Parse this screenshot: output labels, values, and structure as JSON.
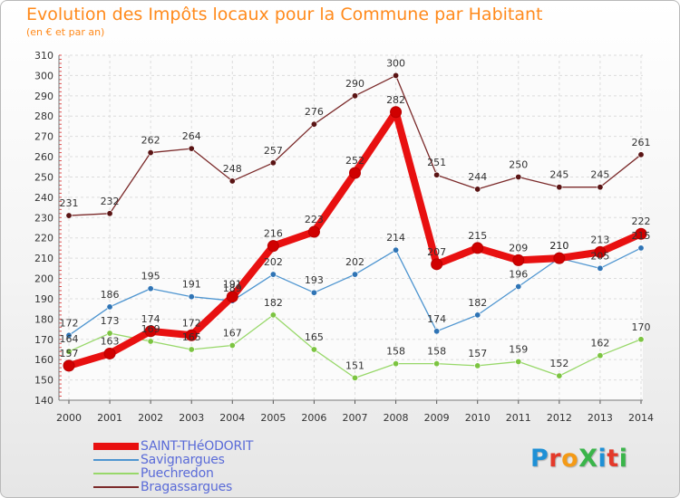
{
  "title": "Evolution des Impôts locaux pour la Commune par Habitant",
  "subtitle": "(en € et par an)",
  "logo": {
    "text": "ProXiti",
    "colors": [
      "#1e90d6",
      "#e4392a",
      "#f49a16",
      "#3ab54a",
      "#1e90d6",
      "#e4392a",
      "#3ab54a"
    ]
  },
  "chart_data": {
    "type": "line",
    "title": "Evolution des Impôts locaux pour la Commune par Habitant",
    "subtitle": "(en € et par an)",
    "x": [
      "2000",
      "2001",
      "2002",
      "2003",
      "2004",
      "2005",
      "2006",
      "2007",
      "2008",
      "2009",
      "2010",
      "2011",
      "2012",
      "2013",
      "2014"
    ],
    "ylim": [
      140,
      310
    ],
    "yticks": [
      140,
      150,
      160,
      170,
      180,
      190,
      200,
      210,
      220,
      230,
      240,
      250,
      260,
      270,
      280,
      290,
      300,
      310
    ],
    "grid": true,
    "legend_position": "bottom-left",
    "series": [
      {
        "name": "Bragassargues",
        "color": "#7b2a2a",
        "marker": "#5a1414",
        "values": [
          231,
          232,
          262,
          264,
          248,
          257,
          276,
          290,
          300,
          251,
          244,
          250,
          245,
          245,
          261
        ]
      },
      {
        "name": "Puechredon",
        "color": "#98d86a",
        "marker": "#7cc441",
        "values": [
          164,
          173,
          169,
          165,
          167,
          182,
          165,
          151,
          158,
          158,
          157,
          159,
          152,
          162,
          170
        ]
      },
      {
        "name": "Savignargues",
        "color": "#4e95d0",
        "marker": "#2f74b5",
        "values": [
          172,
          186,
          195,
          191,
          189,
          202,
          193,
          202,
          214,
          174,
          182,
          196,
          210,
          205,
          215
        ]
      },
      {
        "name": "SAINT-THéODORIT",
        "color": "#e81010",
        "marker": "#d00000",
        "values": [
          157,
          163,
          174,
          172,
          191,
          216,
          223,
          252,
          282,
          207,
          215,
          209,
          210,
          213,
          222
        ]
      }
    ],
    "labels": {
      "Bragassargues": [
        "231",
        "232",
        "262",
        "264",
        "248",
        "257",
        "276",
        "290",
        "300",
        "251",
        "244",
        "250",
        "245",
        "245",
        "261"
      ],
      "Puechredon": [
        "164",
        "173",
        "169",
        "165",
        "167",
        "182",
        "165",
        "151",
        "158",
        "158",
        "157",
        "159",
        "152",
        "162",
        "170"
      ],
      "Savignargues": [
        "172",
        "186",
        "195",
        "191",
        "189",
        "202",
        "193",
        "202",
        "214",
        "174",
        "182",
        "196",
        "210",
        "205",
        "215"
      ],
      "SAINT-THéODORIT": [
        "157",
        "163",
        "174",
        "172",
        "191",
        "216",
        "223",
        "252",
        "282",
        "207",
        "215",
        "209",
        "210",
        "213",
        "222"
      ]
    }
  },
  "legend": [
    {
      "name": "SAINT-THéODORIT",
      "color": "#e81010"
    },
    {
      "name": "Savignargues",
      "color": "#4e95d0"
    },
    {
      "name": "Puechredon",
      "color": "#98d86a"
    },
    {
      "name": "Bragassargues",
      "color": "#7b2a2a"
    }
  ]
}
